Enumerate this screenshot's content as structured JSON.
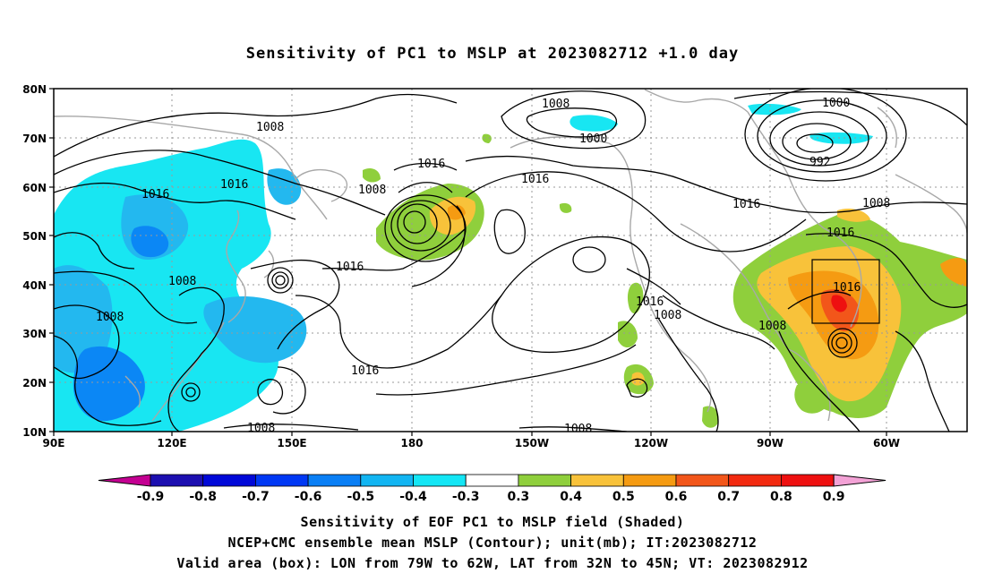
{
  "title": "Sensitivity of PC1 to MSLP at 2023082712 +1.0 day",
  "map": {
    "lon_labels": [
      "90E",
      "120E",
      "150E",
      "180",
      "150W",
      "120W",
      "90W",
      "60W"
    ],
    "lat_labels": [
      "80N",
      "70N",
      "60N",
      "50N",
      "40N",
      "30N",
      "20N",
      "10N"
    ],
    "contour_labels": [
      "1008",
      "1008",
      "1016",
      "1016",
      "1008",
      "1016",
      "1008",
      "1016",
      "1000",
      "1008",
      "1016",
      "1016",
      "1008",
      "1016",
      "1008",
      "1016",
      "1000",
      "992",
      "1016",
      "1008",
      "1016",
      "1016",
      "1008",
      "1008"
    ],
    "box_label": "1016",
    "colors": {
      "cyan": "#18e6f2",
      "lightblue": "#23b8ef",
      "midblue": "#0b87f5",
      "green": "#8fcf3c",
      "yellow": "#f8c23a",
      "orange": "#f59b12",
      "red": "#f2561a",
      "land": "#a8a8a8",
      "contour": "#000000"
    }
  },
  "colorbar": {
    "labels": [
      "-0.9",
      "-0.8",
      "-0.7",
      "-0.6",
      "-0.5",
      "-0.4",
      "-0.3",
      "0.3",
      "0.4",
      "0.5",
      "0.6",
      "0.7",
      "0.8",
      "0.9"
    ],
    "colors": [
      "#c40092",
      "#1c0fb0",
      "#0008d8",
      "#0038f4",
      "#0a7ff5",
      "#12b5f2",
      "#14e6f5",
      "#ffffff",
      "#8fcf3c",
      "#f8c23a",
      "#f59b12",
      "#f2561a",
      "#f22a10",
      "#ee1010",
      "#f3a2d6"
    ]
  },
  "captions": {
    "line1": "Sensitivity of EOF PC1 to MSLP field (Shaded)",
    "line2": "NCEP+CMC ensemble mean MSLP (Contour); unit(mb); IT:2023082712",
    "line3": "Valid area (box): LON from 79W to 62W, LAT from 32N to 45N; VT: 2023082912"
  }
}
